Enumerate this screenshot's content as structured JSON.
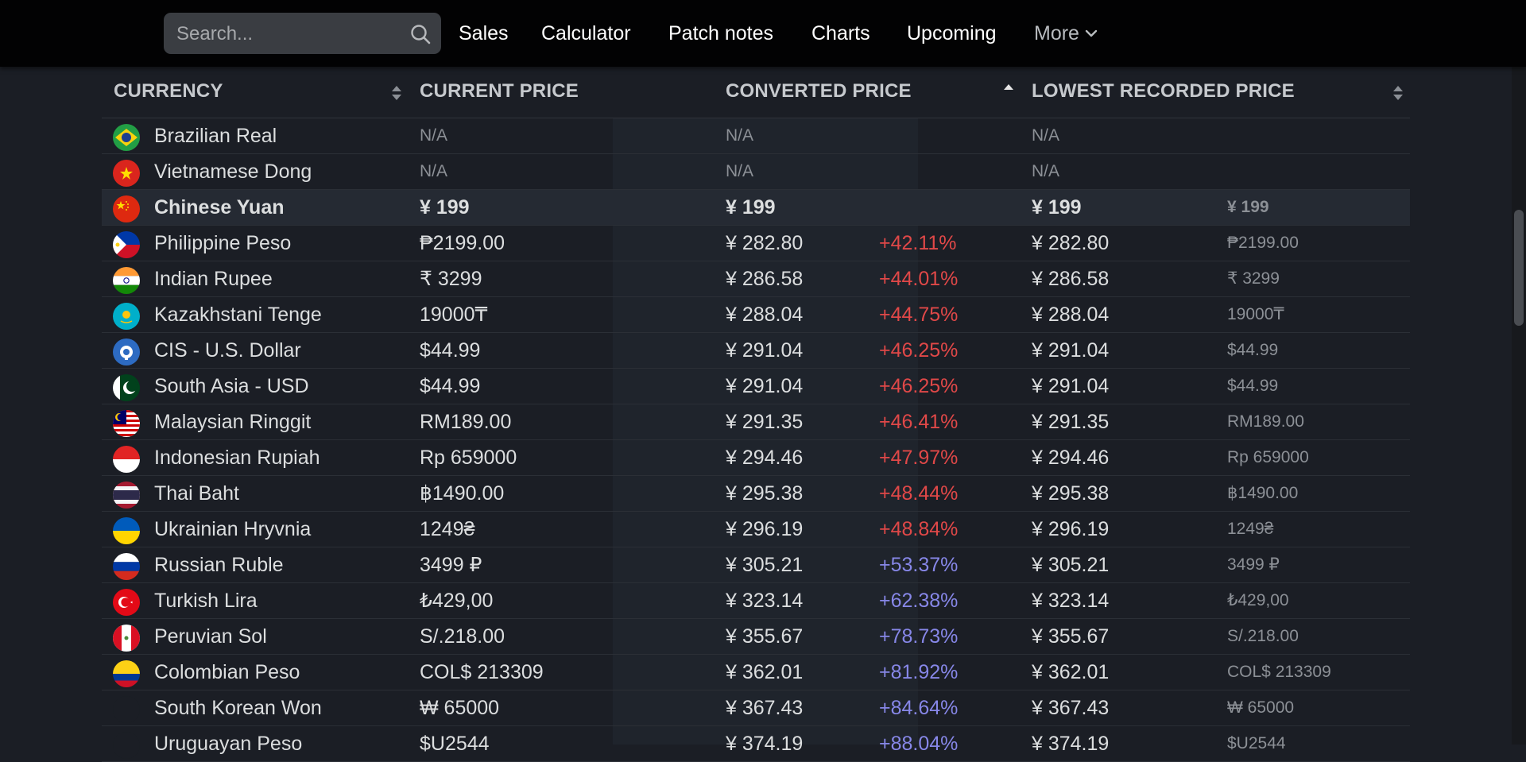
{
  "search": {
    "placeholder": "Search..."
  },
  "nav": {
    "sales": "Sales",
    "calculator": "Calculator",
    "patch_notes": "Patch notes",
    "charts": "Charts",
    "upcoming": "Upcoming",
    "more": "More"
  },
  "table": {
    "headers": {
      "currency": "CURRENCY",
      "current": "CURRENT PRICE",
      "converted": "CONVERTED PRICE",
      "lowest": "LOWEST RECORDED PRICE"
    },
    "rows": [
      {
        "flag": "brazil-flag-icon",
        "currency": "Brazilian Real",
        "current": "N/A",
        "converted": "N/A",
        "pct": "",
        "lowest": "N/A",
        "lowest_orig": ""
      },
      {
        "flag": "vietnam-flag-icon",
        "currency": "Vietnamese Dong",
        "current": "N/A",
        "converted": "N/A",
        "pct": "",
        "lowest": "N/A",
        "lowest_orig": ""
      },
      {
        "flag": "china-flag-icon",
        "currency": "Chinese Yuan",
        "current": "¥ 199",
        "converted": "¥ 199",
        "pct": "",
        "lowest": "¥ 199",
        "lowest_orig": "¥ 199"
      },
      {
        "flag": "philippines-flag-icon",
        "currency": "Philippine Peso",
        "current": "₱2199.00",
        "converted": "¥ 282.80",
        "pct": "+42.11%",
        "lowest": "¥ 282.80",
        "lowest_orig": "₱2199.00"
      },
      {
        "flag": "india-flag-icon",
        "currency": "Indian Rupee",
        "current": "₹ 3299",
        "converted": "¥ 286.58",
        "pct": "+44.01%",
        "lowest": "¥ 286.58",
        "lowest_orig": "₹ 3299"
      },
      {
        "flag": "kazakhstan-flag-icon",
        "currency": "Kazakhstani Tenge",
        "current": "19000₸",
        "converted": "¥ 288.04",
        "pct": "+44.75%",
        "lowest": "¥ 288.04",
        "lowest_orig": "19000₸"
      },
      {
        "flag": "cis-flag-icon",
        "currency": "CIS - U.S. Dollar",
        "current": "$44.99",
        "converted": "¥ 291.04",
        "pct": "+46.25%",
        "lowest": "¥ 291.04",
        "lowest_orig": "$44.99"
      },
      {
        "flag": "pakistan-flag-icon",
        "currency": "South Asia - USD",
        "current": "$44.99",
        "converted": "¥ 291.04",
        "pct": "+46.25%",
        "lowest": "¥ 291.04",
        "lowest_orig": "$44.99"
      },
      {
        "flag": "malaysia-flag-icon",
        "currency": "Malaysian Ringgit",
        "current": "RM189.00",
        "converted": "¥ 291.35",
        "pct": "+46.41%",
        "lowest": "¥ 291.35",
        "lowest_orig": "RM189.00"
      },
      {
        "flag": "indonesia-flag-icon",
        "currency": "Indonesian Rupiah",
        "current": "Rp 659000",
        "converted": "¥ 294.46",
        "pct": "+47.97%",
        "lowest": "¥ 294.46",
        "lowest_orig": "Rp 659000"
      },
      {
        "flag": "thailand-flag-icon",
        "currency": "Thai Baht",
        "current": "฿1490.00",
        "converted": "¥ 295.38",
        "pct": "+48.44%",
        "lowest": "¥ 295.38",
        "lowest_orig": "฿1490.00"
      },
      {
        "flag": "ukraine-flag-icon",
        "currency": "Ukrainian Hryvnia",
        "current": "1249₴",
        "converted": "¥ 296.19",
        "pct": "+48.84%",
        "lowest": "¥ 296.19",
        "lowest_orig": "1249₴"
      },
      {
        "flag": "russia-flag-icon",
        "currency": "Russian Ruble",
        "current": "3499 ₽",
        "converted": "¥ 305.21",
        "pct": "+53.37%",
        "lowest": "¥ 305.21",
        "lowest_orig": "3499 ₽"
      },
      {
        "flag": "turkey-flag-icon",
        "currency": "Turkish Lira",
        "current": "₺429,00",
        "converted": "¥ 323.14",
        "pct": "+62.38%",
        "lowest": "¥ 323.14",
        "lowest_orig": "₺429,00"
      },
      {
        "flag": "peru-flag-icon",
        "currency": "Peruvian Sol",
        "current": "S/.218.00",
        "converted": "¥ 355.67",
        "pct": "+78.73%",
        "lowest": "¥ 355.67",
        "lowest_orig": "S/.218.00"
      },
      {
        "flag": "colombia-flag-icon",
        "currency": "Colombian Peso",
        "current": "COL$ 213309",
        "converted": "¥ 362.01",
        "pct": "+81.92%",
        "lowest": "¥ 362.01",
        "lowest_orig": "COL$ 213309"
      },
      {
        "flag": "south-korea-flag-icon",
        "currency": "South Korean Won",
        "current": "₩ 65000",
        "converted": "¥ 367.43",
        "pct": "+84.64%",
        "lowest": "¥ 367.43",
        "lowest_orig": "₩ 65000"
      },
      {
        "flag": "uruguay-flag-icon",
        "currency": "Uruguayan Peso",
        "current": "$U2544",
        "converted": "¥ 374.19",
        "pct": "+88.04%",
        "lowest": "¥ 374.19",
        "lowest_orig": "$U2544"
      }
    ]
  },
  "colors": {
    "background": "#1b1e25",
    "topbar": "#020203",
    "pct_red": "#e04848",
    "pct_violet": "#8787e8",
    "highlight_row": "#252a33"
  }
}
